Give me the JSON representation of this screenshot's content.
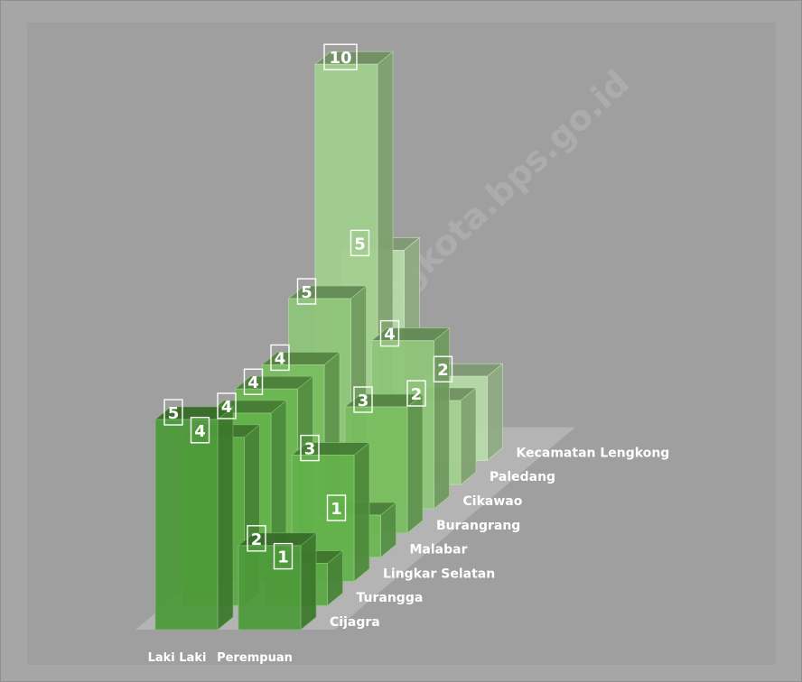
{
  "watermark": "https://bandungkota.bps.go.id",
  "colors": {
    "frame": "#a6a6a6",
    "plot": "#9f9f9f",
    "floor": "#b4b4b4",
    "label": "#ffffff",
    "series_front": [
      "#4e9a3a",
      "#5aa843",
      "#63b14a",
      "#6cb653",
      "#79bd60",
      "#8ec57a",
      "#a1cf8e",
      "#b7dba8",
      "#cde6c2"
    ]
  },
  "chart_data": {
    "type": "bar",
    "style": "3d-column",
    "categories": [
      "Laki Laki",
      "Perempuan"
    ],
    "series": [
      {
        "name": "Cijagra",
        "values": [
          5,
          2
        ]
      },
      {
        "name": "Turangga",
        "values": [
          4,
          1
        ]
      },
      {
        "name": "Lingkar Selatan",
        "values": [
          4,
          3
        ]
      },
      {
        "name": "Malabar",
        "values": [
          4,
          1
        ]
      },
      {
        "name": "Burangrang",
        "values": [
          4,
          3
        ]
      },
      {
        "name": "Cikawao",
        "values": [
          5,
          4
        ]
      },
      {
        "name": "Paledang",
        "values": [
          10,
          2
        ]
      },
      {
        "name": "Kecamatan Lengkong",
        "values": [
          5,
          2
        ]
      }
    ],
    "data_labels": true,
    "grid": false,
    "legend": "none",
    "ylim": [
      0,
      10
    ]
  }
}
